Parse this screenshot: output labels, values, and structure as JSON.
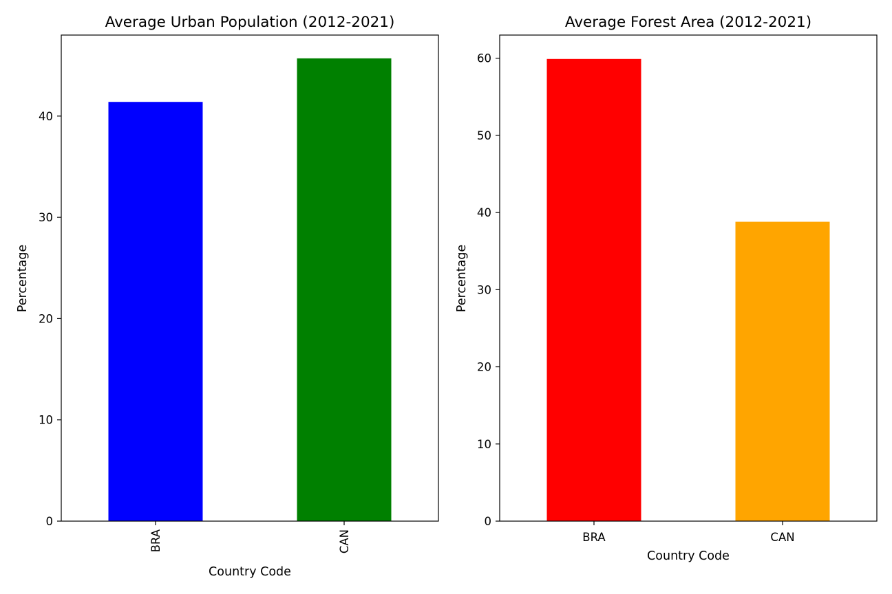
{
  "chart_data": [
    {
      "type": "bar",
      "title": "Average Urban Population (2012-2021)",
      "xlabel": "Country Code",
      "ylabel": "Percentage",
      "categories": [
        "BRA",
        "CAN"
      ],
      "values": [
        41.4,
        45.7
      ],
      "colors": [
        "#0000ff",
        "#008000"
      ],
      "ylim": [
        0,
        48.0
      ],
      "yticks": [
        0,
        10,
        20,
        30,
        40
      ],
      "xtick_rotation": 90,
      "grid": false,
      "legend": "none"
    },
    {
      "type": "bar",
      "title": "Average Forest Area (2012-2021)",
      "xlabel": "Country Code",
      "ylabel": "Percentage",
      "categories": [
        "BRA",
        "CAN"
      ],
      "values": [
        59.9,
        38.8
      ],
      "colors": [
        "#ff0000",
        "#ffa500"
      ],
      "ylim": [
        0,
        63.0
      ],
      "yticks": [
        0,
        10,
        20,
        30,
        40,
        50,
        60
      ],
      "xtick_rotation": 0,
      "grid": false,
      "legend": "none"
    }
  ]
}
